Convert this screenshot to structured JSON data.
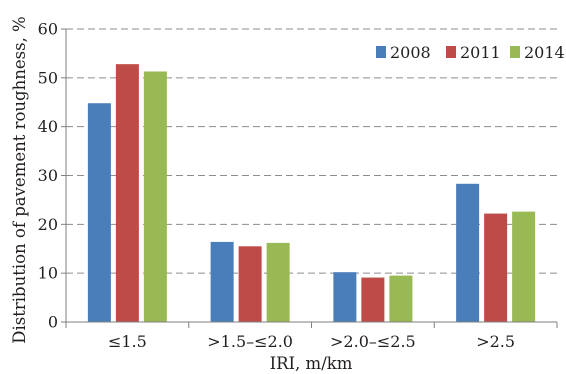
{
  "chart_data": {
    "type": "bar",
    "title": "",
    "xlabel": "IRI, m/km",
    "ylabel": "Distribution of pavement roughness, %",
    "categories": [
      "≤1.5",
      ">1.5–≤2.0",
      ">2.0–≤2.5",
      ">2.5"
    ],
    "series": [
      {
        "name": "2008",
        "color": "#4a7ebb",
        "values": [
          44.8,
          16.4,
          10.2,
          28.3
        ]
      },
      {
        "name": "2011",
        "color": "#be4b48",
        "values": [
          52.8,
          15.5,
          9.1,
          22.2
        ]
      },
      {
        "name": "2014",
        "color": "#98b954",
        "values": [
          51.3,
          16.2,
          9.5,
          22.6
        ]
      }
    ],
    "ylim": [
      0,
      60
    ],
    "yticks": [
      0,
      10,
      20,
      30,
      40,
      50,
      60
    ],
    "grid": true,
    "legend_position": "top-right"
  }
}
